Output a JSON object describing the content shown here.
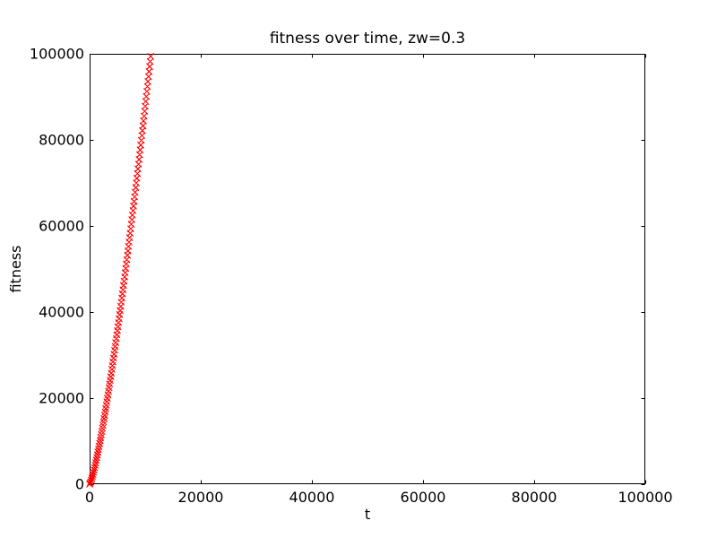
{
  "figure": {
    "background": "#ffffff",
    "axis_color": "#000000",
    "marker_color": "#ff0000"
  },
  "chart_data": {
    "type": "scatter",
    "title": "fitness over time, zw=0.3",
    "xlabel": "t",
    "ylabel": "fitness",
    "xlim": [
      0,
      100000
    ],
    "ylim": [
      0,
      100000
    ],
    "xticks": [
      0,
      20000,
      40000,
      60000,
      80000,
      100000
    ],
    "yticks": [
      0,
      20000,
      40000,
      60000,
      80000,
      100000
    ],
    "grid": false,
    "legend_position": "none",
    "marker": "x",
    "marker_color": "#ff0000",
    "series": [
      {
        "name": "fitness",
        "x": [
          0,
          100,
          200,
          300,
          400,
          500,
          600,
          700,
          800,
          900,
          1000,
          1100,
          1200,
          1300,
          1400,
          1500,
          1600,
          1700,
          1800,
          1900,
          2000,
          2100,
          2200,
          2300,
          2400,
          2500,
          2600,
          2700,
          2800,
          2900,
          3000,
          3100,
          3200,
          3300,
          3400,
          3500,
          3600,
          3700,
          3800,
          3900,
          4000,
          4100,
          4200,
          4300,
          4400,
          4500,
          4600,
          4700,
          4800,
          4900,
          5000,
          5100,
          5200,
          5300,
          5400,
          5500,
          5600,
          5700,
          5800,
          5900,
          6000,
          6100,
          6200,
          6300,
          6400,
          6500,
          6600,
          6700,
          6800,
          6900,
          7000,
          7100,
          7200,
          7300,
          7400,
          7500,
          7600,
          7700,
          7800,
          7900,
          8000,
          8100,
          8200,
          8300,
          8400,
          8500,
          8600,
          8700,
          8800,
          8900,
          9000,
          9100,
          9200,
          9300,
          9400,
          9500,
          9600,
          9700,
          9800,
          9900,
          10000,
          10100,
          10200,
          10300,
          10400,
          10500,
          10600,
          10700,
          10800,
          10900,
          11000
        ],
        "y": [
          0,
          221,
          543,
          920,
          1337,
          1788,
          2266,
          2769,
          3294,
          3838,
          4402,
          4983,
          5579,
          6190,
          6816,
          7456,
          8109,
          8774,
          9450,
          10138,
          10837,
          11547,
          12267,
          12996,
          13735,
          14484,
          15242,
          16008,
          16783,
          17567,
          18358,
          19157,
          19964,
          20779,
          21602,
          22431,
          23267,
          24111,
          24961,
          25818,
          26682,
          27553,
          28430,
          29313,
          30202,
          31097,
          31998,
          32905,
          33818,
          34737,
          35662,
          36591,
          37526,
          38467,
          39413,
          40364,
          41321,
          42282,
          43249,
          44220,
          45197,
          46178,
          47165,
          48156,
          49152,
          50152,
          51158,
          52167,
          53182,
          54201,
          55224,
          56253,
          57285,
          58322,
          59363,
          60408,
          61457,
          62511,
          63569,
          64631,
          65697,
          66766,
          67840,
          68918,
          69999,
          71084,
          72173,
          73266,
          74362,
          75463,
          76567,
          77674,
          78785,
          79900,
          81018,
          82140,
          83266,
          84395,
          85527,
          86663,
          87803,
          88946,
          90093,
          91243,
          92396,
          93553,
          94713,
          95876,
          97043,
          98213,
          99386
        ]
      }
    ]
  }
}
